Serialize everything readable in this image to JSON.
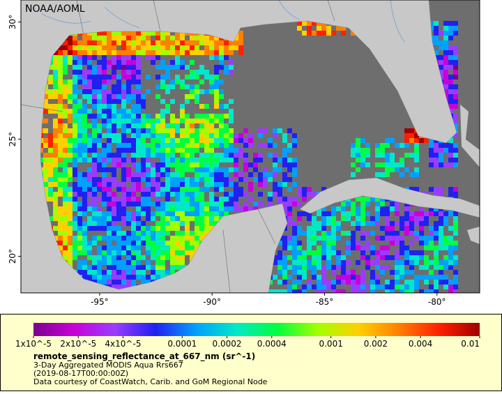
{
  "map": {
    "credit": "NOAA/AOML",
    "lonlim": [
      -98.5,
      -78.1
    ],
    "latlim": [
      18.44,
      30.94
    ],
    "lon_ticks": [
      {
        "value": -95,
        "label": "-95°"
      },
      {
        "value": -90,
        "label": "-90°"
      },
      {
        "value": -85,
        "label": "-85°"
      },
      {
        "value": -80,
        "label": "-80°"
      }
    ],
    "lat_ticks": [
      {
        "value": 30,
        "label": "30°"
      },
      {
        "value": 25,
        "label": "25°"
      },
      {
        "value": 20,
        "label": "20°"
      }
    ]
  },
  "colorbar": {
    "scale": "log",
    "lim": [
      1e-05,
      0.01
    ],
    "ticks": [
      {
        "value": 1e-05,
        "label": "1x10^-5"
      },
      {
        "value": 2e-05,
        "label": "2x10^-5"
      },
      {
        "value": 4e-05,
        "label": "4x10^-5"
      },
      0.0001,
      0.0002,
      0.0004,
      0.001,
      0.002,
      0.004,
      0.01
    ],
    "colormap": [
      "#7a0090",
      "#c800d8",
      "#9a3cff",
      "#2020f0",
      "#00a0ff",
      "#00e8c8",
      "#00ff40",
      "#a0ff00",
      "#ffd000",
      "#ff8000",
      "#ff2000",
      "#a00000"
    ]
  },
  "caption": {
    "variable": "remote_sensing_reflectance_at_667_nm (sr^-1)",
    "lines": [
      "3-Day Aggregated MODIS Aqua Rrs667",
      "(2019-08-17T00:00:00Z)",
      "Data courtesy of CoastWatch, Carib. and GoM Regional Node"
    ]
  }
}
